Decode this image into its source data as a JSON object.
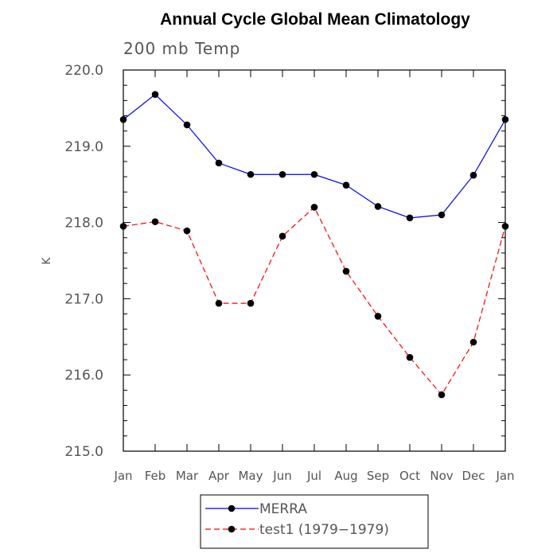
{
  "chart_data": {
    "type": "line",
    "title": "Annual Cycle Global Mean Climatology",
    "subtitle": "200 mb Temp",
    "ylabel": "K",
    "xlabel": "",
    "ylim": [
      215.0,
      220.0
    ],
    "yticks": [
      "215.0",
      "216.0",
      "217.0",
      "218.0",
      "219.0",
      "220.0"
    ],
    "categories": [
      "Jan",
      "Feb",
      "Mar",
      "Apr",
      "May",
      "Jun",
      "Jul",
      "Aug",
      "Sep",
      "Oct",
      "Nov",
      "Dec",
      "Jan"
    ],
    "grid": false,
    "legend_position": "bottom",
    "series": [
      {
        "name": "MERRA",
        "color": "#0000ff",
        "line_style": "solid",
        "marker": "filled-circle",
        "values": [
          219.35,
          219.68,
          219.28,
          218.78,
          218.63,
          218.63,
          218.63,
          218.49,
          218.21,
          218.06,
          218.1,
          218.62,
          219.35
        ]
      },
      {
        "name": "test1 (1979−1979)",
        "color": "#ff0000",
        "line_style": "dashed",
        "marker": "filled-circle",
        "values": [
          217.95,
          218.01,
          217.89,
          216.94,
          216.94,
          217.82,
          218.2,
          217.36,
          216.77,
          216.23,
          215.74,
          216.43,
          217.95
        ]
      }
    ]
  }
}
